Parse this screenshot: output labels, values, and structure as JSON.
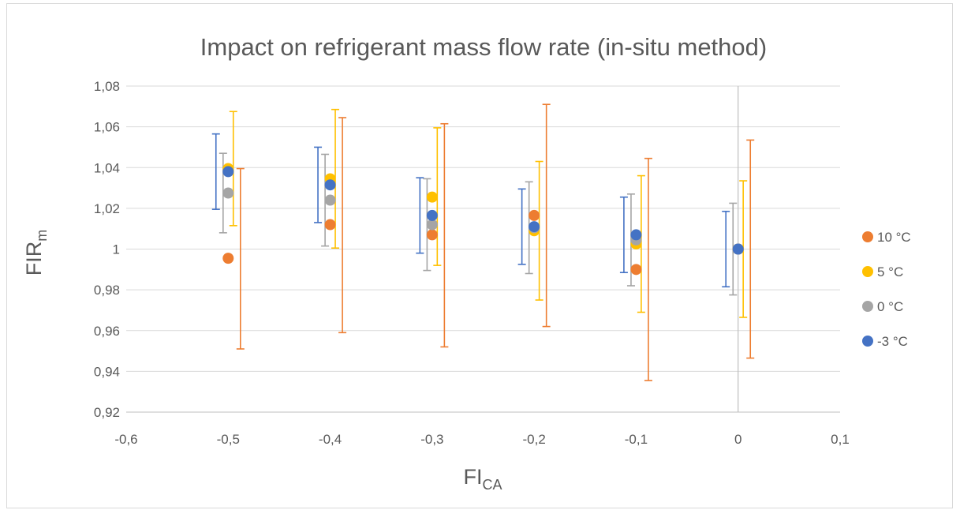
{
  "chart_data": {
    "type": "scatter",
    "title": "Impact on refrigerant mass flow rate (in-situ method)",
    "xlabel": {
      "main": "FI",
      "sub": "CA"
    },
    "ylabel": {
      "main": "FIR",
      "sub": "m"
    },
    "xlim": [
      -0.6,
      0.1
    ],
    "ylim": [
      0.92,
      1.08
    ],
    "x_ticks": [
      "-0,6",
      "-0,5",
      "-0,4",
      "-0,3",
      "-0,2",
      "-0,1",
      "0",
      "0,1"
    ],
    "y_ticks": [
      "0,92",
      "0,94",
      "0,96",
      "0,98",
      "1",
      "1,02",
      "1,04",
      "1,06",
      "1,08"
    ],
    "grid": "horizontal",
    "legend_position": "right",
    "series": [
      {
        "name": "10 °C",
        "color": "#ED7D31",
        "points": [
          {
            "x": -0.5,
            "y": 0.9955,
            "lo": 0.951,
            "hi": 1.0395
          },
          {
            "x": -0.4,
            "y": 1.012,
            "lo": 0.959,
            "hi": 1.0645
          },
          {
            "x": -0.3,
            "y": 1.007,
            "lo": 0.952,
            "hi": 1.0615
          },
          {
            "x": -0.2,
            "y": 1.0165,
            "lo": 0.962,
            "hi": 1.071
          },
          {
            "x": -0.1,
            "y": 0.99,
            "lo": 0.9355,
            "hi": 1.0445
          },
          {
            "x": 0.0,
            "y": 1.0,
            "lo": 0.9465,
            "hi": 1.0535
          }
        ]
      },
      {
        "name": "5 °C",
        "color": "#FFC000",
        "points": [
          {
            "x": -0.5,
            "y": 1.0395,
            "lo": 1.0115,
            "hi": 1.0675
          },
          {
            "x": -0.4,
            "y": 1.0345,
            "lo": 1.0005,
            "hi": 1.0685
          },
          {
            "x": -0.3,
            "y": 1.0255,
            "lo": 0.992,
            "hi": 1.0595
          },
          {
            "x": -0.2,
            "y": 1.009,
            "lo": 0.975,
            "hi": 1.043
          },
          {
            "x": -0.1,
            "y": 1.0025,
            "lo": 0.969,
            "hi": 1.036
          },
          {
            "x": 0.0,
            "y": 1.0,
            "lo": 0.9665,
            "hi": 1.0335
          }
        ]
      },
      {
        "name": "0 °C",
        "color": "#A5A5A5",
        "points": [
          {
            "x": -0.5,
            "y": 1.0275,
            "lo": 1.008,
            "hi": 1.047
          },
          {
            "x": -0.4,
            "y": 1.024,
            "lo": 1.0015,
            "hi": 1.0465
          },
          {
            "x": -0.3,
            "y": 1.012,
            "lo": 0.9895,
            "hi": 1.0345
          },
          {
            "x": -0.2,
            "y": 1.0105,
            "lo": 0.988,
            "hi": 1.033
          },
          {
            "x": -0.1,
            "y": 1.0045,
            "lo": 0.982,
            "hi": 1.027
          },
          {
            "x": 0.0,
            "y": 1.0,
            "lo": 0.9775,
            "hi": 1.0225
          }
        ]
      },
      {
        "name": "-3 °C",
        "color": "#4472C4",
        "points": [
          {
            "x": -0.5,
            "y": 1.038,
            "lo": 1.0195,
            "hi": 1.0565
          },
          {
            "x": -0.4,
            "y": 1.0315,
            "lo": 1.013,
            "hi": 1.05
          },
          {
            "x": -0.3,
            "y": 1.0165,
            "lo": 0.998,
            "hi": 1.035
          },
          {
            "x": -0.2,
            "y": 1.011,
            "lo": 0.9925,
            "hi": 1.0295
          },
          {
            "x": -0.1,
            "y": 1.007,
            "lo": 0.9885,
            "hi": 1.0255
          },
          {
            "x": 0.0,
            "y": 1.0,
            "lo": 0.9815,
            "hi": 1.0185
          }
        ]
      }
    ]
  }
}
